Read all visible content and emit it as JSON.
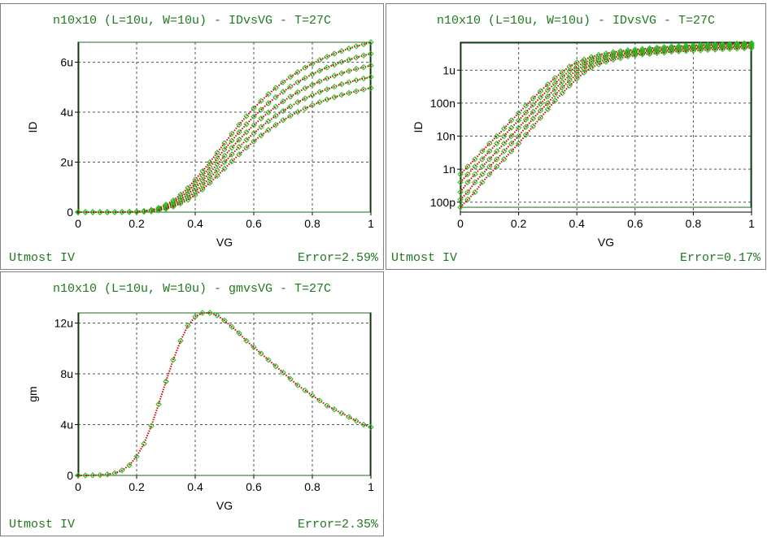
{
  "panels": [
    {
      "title": "n10x10 (L=10u, W=10u) - IDvsVG - T=27C",
      "footer_left": "Utmost IV",
      "footer_right": "Error=2.59%"
    },
    {
      "title": "n10x10 (L=10u, W=10u) - IDvsVG - T=27C",
      "footer_left": "Utmost IV",
      "footer_right": "Error=0.17%"
    },
    {
      "title": "n10x10 (L=10u, W=10u) - gmvsVG - T=27C",
      "footer_left": "Utmost IV",
      "footer_right": "Error=2.35%"
    }
  ],
  "colors": {
    "title_text": "#1f7a1f",
    "measured_marker": "#22c022",
    "simulated_line": "#cc0000",
    "frame": "#1f6b1f",
    "grid": "#555555"
  },
  "chart_data": [
    {
      "type": "scatter",
      "title": "n10x10 (L=10u, W=10u) - IDvsVG - T=27C",
      "xlabel": "VG",
      "ylabel": "ID",
      "xlim": [
        0,
        1
      ],
      "ylim": [
        0,
        6.8e-06
      ],
      "xticks": [
        0,
        0.2,
        0.4,
        0.6,
        0.8,
        1
      ],
      "xtick_labels": [
        "0",
        "0.2",
        "0.4",
        "0.6",
        "0.8",
        "1"
      ],
      "yticks": [
        0,
        2e-06,
        4e-06,
        6e-06
      ],
      "ytick_labels": [
        "0",
        "2u",
        "4u",
        "6u"
      ],
      "grid": true,
      "y_scale": "linear",
      "x": [
        0,
        0.025,
        0.05,
        0.075,
        0.1,
        0.125,
        0.15,
        0.175,
        0.2,
        0.225,
        0.25,
        0.275,
        0.3,
        0.325,
        0.35,
        0.375,
        0.4,
        0.425,
        0.45,
        0.475,
        0.5,
        0.525,
        0.55,
        0.575,
        0.6,
        0.625,
        0.65,
        0.675,
        0.7,
        0.725,
        0.75,
        0.775,
        0.8,
        0.825,
        0.85,
        0.875,
        0.9,
        0.925,
        0.95,
        0.975,
        1
      ],
      "series": [
        {
          "values": [
            0,
            0,
            0,
            0,
            2e-10,
            1e-09,
            3e-09,
            8e-09,
            2e-08,
            4.5e-08,
            9e-08,
            1.7e-07,
            3e-07,
            4.7e-07,
            7e-07,
            9.7e-07,
            1.3e-06,
            1.64e-06,
            2e-06,
            2.38e-06,
            2.76e-06,
            3.13e-06,
            3.5e-06,
            3.84e-06,
            4.16e-06,
            4.45e-06,
            4.72e-06,
            4.97e-06,
            5.2e-06,
            5.41e-06,
            5.6e-06,
            5.78e-06,
            5.94e-06,
            6.09e-06,
            6.22e-06,
            6.34e-06,
            6.45e-06,
            6.55e-06,
            6.64e-06,
            6.72e-06,
            6.8e-06
          ]
        },
        {
          "values": [
            0,
            0,
            0,
            0,
            1e-10,
            7e-10,
            2e-09,
            6e-09,
            1.6e-08,
            3.6e-08,
            7.2e-08,
            1.4e-07,
            2.5e-07,
            4e-07,
            6e-07,
            8.4e-07,
            1.13e-06,
            1.45e-06,
            1.8e-06,
            2.15e-06,
            2.51e-06,
            2.86e-06,
            3.2e-06,
            3.52e-06,
            3.82e-06,
            4.1e-06,
            4.36e-06,
            4.6e-06,
            4.82e-06,
            5.02e-06,
            5.2e-06,
            5.37e-06,
            5.52e-06,
            5.66e-06,
            5.79e-06,
            5.9e-06,
            6.01e-06,
            6.1e-06,
            6.19e-06,
            6.27e-06,
            6.34e-06
          ]
        },
        {
          "values": [
            0,
            0,
            0,
            0,
            1e-10,
            5e-10,
            1.5e-09,
            4e-09,
            1.2e-08,
            2.8e-08,
            5.8e-08,
            1.1e-07,
            2e-07,
            3.3e-07,
            5e-07,
            7.1e-07,
            9.7e-07,
            1.26e-06,
            1.58e-06,
            1.91e-06,
            2.25e-06,
            2.58e-06,
            2.9e-06,
            3.2e-06,
            3.48e-06,
            3.75e-06,
            3.99e-06,
            4.22e-06,
            4.43e-06,
            4.62e-06,
            4.8e-06,
            4.96e-06,
            5.1e-06,
            5.23e-06,
            5.35e-06,
            5.46e-06,
            5.56e-06,
            5.65e-06,
            5.73e-06,
            5.8e-06,
            5.87e-06
          ]
        },
        {
          "values": [
            0,
            0,
            0,
            0,
            0,
            3e-10,
            1e-09,
            3e-09,
            9e-09,
            2.1e-08,
            4.5e-08,
            9e-08,
            1.6e-07,
            2.7e-07,
            4.1e-07,
            5.9e-07,
            8.2e-07,
            1.08e-06,
            1.37e-06,
            1.68e-06,
            2e-06,
            2.31e-06,
            2.61e-06,
            2.89e-06,
            3.16e-06,
            3.41e-06,
            3.64e-06,
            3.85e-06,
            4.05e-06,
            4.23e-06,
            4.4e-06,
            4.55e-06,
            4.68e-06,
            4.81e-06,
            4.92e-06,
            5.02e-06,
            5.12e-06,
            5.2e-06,
            5.28e-06,
            5.35e-06,
            5.41e-06
          ]
        },
        {
          "values": [
            0,
            0,
            0,
            0,
            0,
            2e-10,
            7e-10,
            2e-09,
            6e-09,
            1.5e-08,
            3.3e-08,
            7e-08,
            1.3e-07,
            2.2e-07,
            3.4e-07,
            4.9e-07,
            6.8e-07,
            9.1e-07,
            1.17e-06,
            1.45e-06,
            1.74e-06,
            2.03e-06,
            2.31e-06,
            2.58e-06,
            2.83e-06,
            3.07e-06,
            3.29e-06,
            3.49e-06,
            3.68e-06,
            3.85e-06,
            4.01e-06,
            4.15e-06,
            4.28e-06,
            4.4e-06,
            4.51e-06,
            4.6e-06,
            4.69e-06,
            4.77e-06,
            4.84e-06,
            4.91e-06,
            4.97e-06
          ]
        }
      ]
    },
    {
      "type": "scatter",
      "title": "n10x10 (L=10u, W=10u) - IDvsVG - T=27C",
      "xlabel": "VG",
      "ylabel": "ID",
      "xlim": [
        0,
        1
      ],
      "ylim": [
        5e-11,
        7e-06
      ],
      "xticks": [
        0,
        0.2,
        0.4,
        0.6,
        0.8,
        1
      ],
      "xtick_labels": [
        "0",
        "0.2",
        "0.4",
        "0.6",
        "0.8",
        "1"
      ],
      "yticks": [
        1e-10,
        1e-09,
        1e-08,
        1e-07,
        1e-06
      ],
      "ytick_labels": [
        "100p",
        "1n",
        "10n",
        "100n",
        "1u"
      ],
      "grid": true,
      "y_scale": "log",
      "x": [
        0,
        0.025,
        0.05,
        0.075,
        0.1,
        0.125,
        0.15,
        0.175,
        0.2,
        0.225,
        0.25,
        0.275,
        0.3,
        0.325,
        0.35,
        0.375,
        0.4,
        0.425,
        0.45,
        0.475,
        0.5,
        0.525,
        0.55,
        0.575,
        0.6,
        0.625,
        0.65,
        0.675,
        0.7,
        0.725,
        0.75,
        0.775,
        0.8,
        0.825,
        0.85,
        0.875,
        0.9,
        0.925,
        0.95,
        0.975,
        1
      ],
      "series": [
        {
          "values": [
            7e-10,
            1.2e-09,
            2e-09,
            3.5e-09,
            6e-09,
            1e-08,
            1.7e-08,
            3e-08,
            5e-08,
            8.5e-08,
            1.4e-07,
            2.3e-07,
            3.7e-07,
            5.8e-07,
            8.8e-07,
            1.3e-06,
            1.7e-06,
            2.1e-06,
            2.5e-06,
            2.9e-06,
            3.2e-06,
            3.5e-06,
            3.8e-06,
            4e-06,
            4.2e-06,
            4.4e-06,
            4.6e-06,
            4.8e-06,
            5e-06,
            5.2e-06,
            5.3e-06,
            5.5e-06,
            5.6e-06,
            5.8e-06,
            5.9e-06,
            6e-06,
            6.1e-06,
            6.2e-06,
            6.4e-06,
            6.5e-06,
            6.6e-06
          ]
        },
        {
          "values": [
            4e-10,
            7e-10,
            1.2e-09,
            2e-09,
            3.5e-09,
            6e-09,
            1e-08,
            1.8e-08,
            3e-08,
            5.2e-08,
            9e-08,
            1.5e-07,
            2.5e-07,
            4e-07,
            6.3e-07,
            9.5e-07,
            1.3e-06,
            1.7e-06,
            2.1e-06,
            2.5e-06,
            2.8e-06,
            3.1e-06,
            3.4e-06,
            3.6e-06,
            3.8e-06,
            4e-06,
            4.2e-06,
            4.4e-06,
            4.6e-06,
            4.8e-06,
            4.9e-06,
            5.1e-06,
            5.2e-06,
            5.4e-06,
            5.5e-06,
            5.6e-06,
            5.7e-06,
            5.8e-06,
            6e-06,
            6.1e-06,
            6.2e-06
          ]
        },
        {
          "values": [
            2e-10,
            4e-10,
            7e-10,
            1.2e-09,
            2e-09,
            3.5e-09,
            6e-09,
            1e-08,
            1.8e-08,
            3.2e-08,
            5.5e-08,
            9.5e-08,
            1.6e-07,
            2.7e-07,
            4.4e-07,
            6.8e-07,
            1e-06,
            1.4e-06,
            1.8e-06,
            2.1e-06,
            2.5e-06,
            2.8e-06,
            3e-06,
            3.3e-06,
            3.5e-06,
            3.7e-06,
            3.9e-06,
            4.1e-06,
            4.2e-06,
            4.4e-06,
            4.5e-06,
            4.7e-06,
            4.8e-06,
            4.9e-06,
            5.1e-06,
            5.2e-06,
            5.3e-06,
            5.4e-06,
            5.5e-06,
            5.6e-06,
            5.7e-06
          ]
        },
        {
          "values": [
            1.2e-10,
            2e-10,
            4e-10,
            7e-10,
            1.2e-09,
            2e-09,
            3.5e-09,
            6e-09,
            1e-08,
            1.9e-08,
            3.4e-08,
            6e-08,
            1e-07,
            1.8e-07,
            3e-07,
            4.9e-07,
            7.5e-07,
            1.1e-06,
            1.5e-06,
            1.8e-06,
            2.1e-06,
            2.4e-06,
            2.7e-06,
            2.9e-06,
            3.1e-06,
            3.3e-06,
            3.5e-06,
            3.7e-06,
            3.8e-06,
            4e-06,
            4.1e-06,
            4.2e-06,
            4.4e-06,
            4.5e-06,
            4.6e-06,
            4.7e-06,
            4.8e-06,
            4.9e-06,
            5e-06,
            5.1e-06,
            5.2e-06
          ]
        },
        {
          "values": [
            7e-11,
            1.2e-10,
            2e-10,
            4e-10,
            7e-10,
            1.2e-09,
            2e-09,
            3.5e-09,
            6e-09,
            1.1e-08,
            2e-08,
            3.6e-08,
            6.5e-08,
            1.2e-07,
            2e-07,
            3.4e-07,
            5.5e-07,
            8.5e-07,
            1.2e-06,
            1.5e-06,
            1.8e-06,
            2.1e-06,
            2.3e-06,
            2.6e-06,
            2.8e-06,
            3e-06,
            3.1e-06,
            3.3e-06,
            3.4e-06,
            3.6e-06,
            3.7e-06,
            3.8e-06,
            3.9e-06,
            4e-06,
            4.1e-06,
            4.2e-06,
            4.3e-06,
            4.4e-06,
            4.5e-06,
            4.6e-06,
            4.7e-06
          ]
        }
      ]
    },
    {
      "type": "scatter",
      "title": "n10x10 (L=10u, W=10u) - gmvsVG - T=27C",
      "xlabel": "VG",
      "ylabel": "gm",
      "xlim": [
        0,
        1
      ],
      "ylim": [
        0,
        1.28e-05
      ],
      "xticks": [
        0,
        0.2,
        0.4,
        0.6,
        0.8,
        1
      ],
      "xtick_labels": [
        "0",
        "0.2",
        "0.4",
        "0.6",
        "0.8",
        "1"
      ],
      "yticks": [
        0,
        4e-06,
        8e-06,
        1.2e-05
      ],
      "ytick_labels": [
        "0",
        "4u",
        "8u",
        "12u"
      ],
      "grid": true,
      "y_scale": "linear",
      "x": [
        0,
        0.025,
        0.05,
        0.075,
        0.1,
        0.125,
        0.15,
        0.175,
        0.2,
        0.225,
        0.25,
        0.275,
        0.3,
        0.325,
        0.35,
        0.375,
        0.4,
        0.425,
        0.45,
        0.475,
        0.5,
        0.525,
        0.55,
        0.575,
        0.6,
        0.625,
        0.65,
        0.675,
        0.7,
        0.725,
        0.75,
        0.775,
        0.8,
        0.825,
        0.85,
        0.875,
        0.9,
        0.925,
        0.95,
        0.975,
        1
      ],
      "series": [
        {
          "values": [
            0,
            0,
            1e-08,
            3e-08,
            8e-08,
            1.8e-07,
            4e-07,
            8e-07,
            1.5e-06,
            2.5e-06,
            3.9e-06,
            5.6e-06,
            7.4e-06,
            9.1e-06,
            1.06e-05,
            1.18e-05,
            1.25e-05,
            1.28e-05,
            1.28e-05,
            1.26e-05,
            1.22e-05,
            1.17e-05,
            1.12e-05,
            1.06e-05,
            1.01e-05,
            9.6e-06,
            9.1e-06,
            8.6e-06,
            8.1e-06,
            7.6e-06,
            7.1e-06,
            6.7e-06,
            6.3e-06,
            5.9e-06,
            5.5e-06,
            5.2e-06,
            4.9e-06,
            4.6e-06,
            4.3e-06,
            4e-06,
            3.8e-06
          ]
        }
      ]
    }
  ]
}
